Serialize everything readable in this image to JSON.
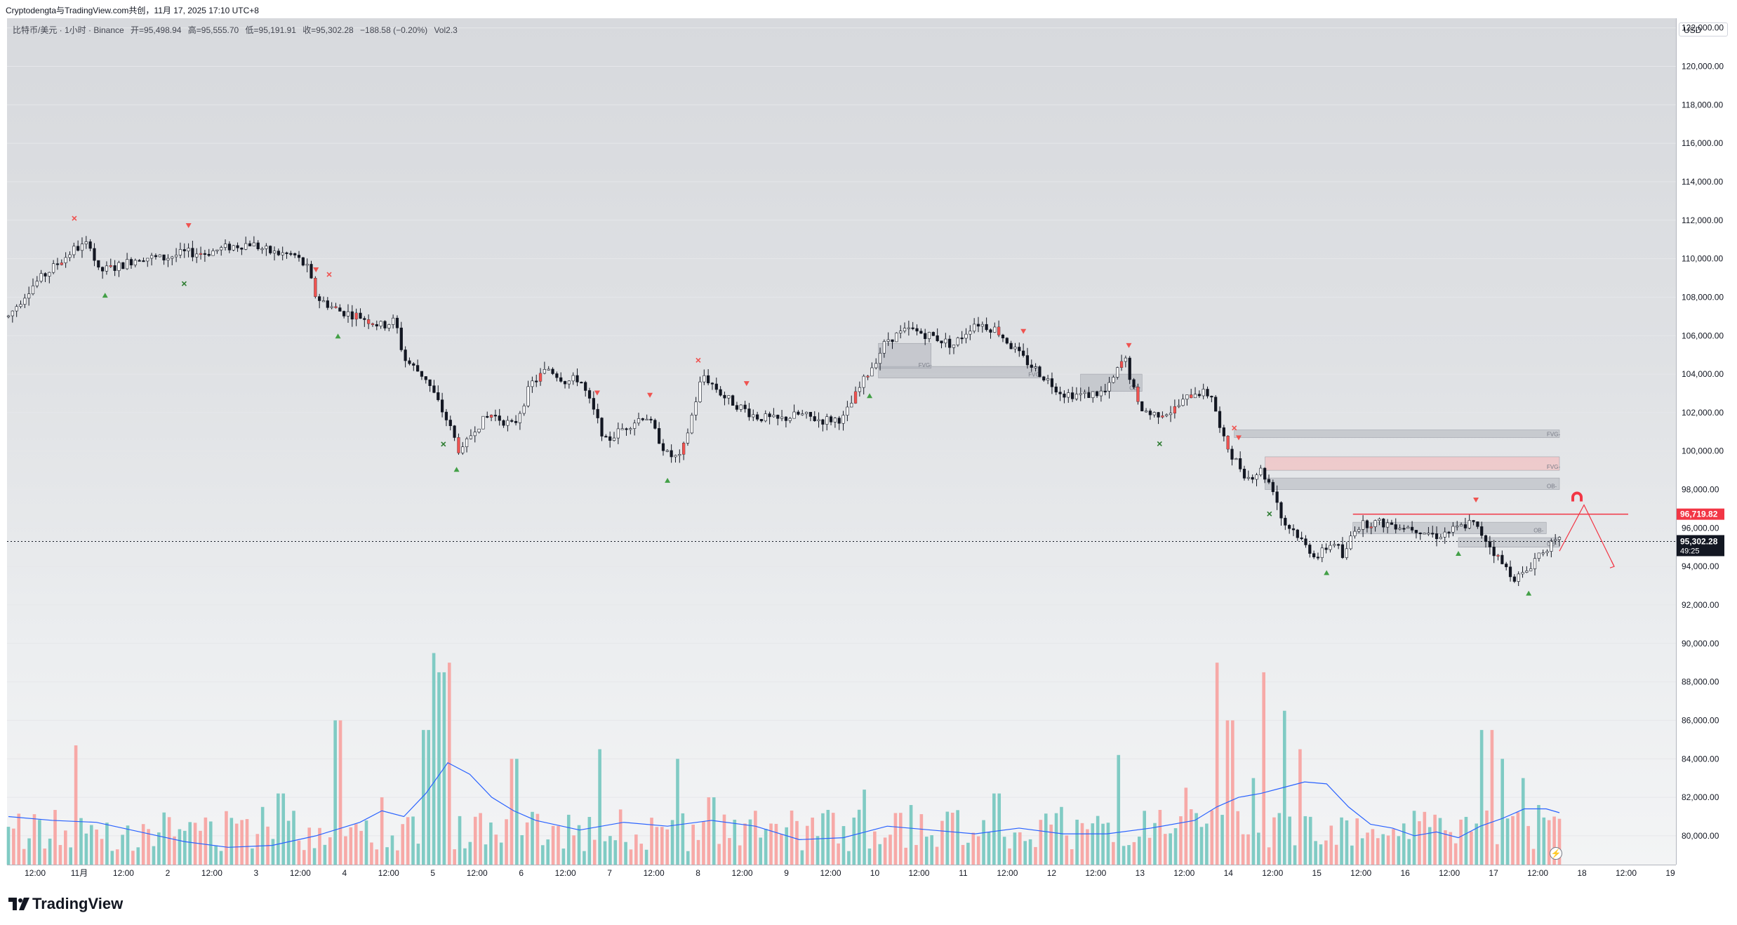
{
  "header": {
    "share_text": "Cryptodengta与TradingView.com共创，11月 17, 2025 17:10 UTC+8"
  },
  "legend": {
    "symbol": "比特币/美元 · 1小时 · Binance",
    "open": "开=95,498.94",
    "high": "高=95,555.70",
    "low": "低=95,191.91",
    "close": "收=95,302.28",
    "change": "−188.58 (−0.20%)",
    "volume": "Vol2.3"
  },
  "currency_button": "USD",
  "brand": "TradingView",
  "colors": {
    "up": "#26a69a",
    "down": "#ef5350",
    "ma": "#2962ff",
    "level": "#f23645",
    "current": "#131722"
  },
  "chart_data": {
    "type": "candlestick",
    "symbol": "BTC/USD",
    "interval": "1h",
    "exchange": "Binance",
    "y_ticks": [
      "80,000.00",
      "82,000.00",
      "84,000.00",
      "86,000.00",
      "88,000.00",
      "90,000.00",
      "92,000.00",
      "94,000.00",
      "96,000.00",
      "98,000.00",
      "100,000.00",
      "102,000.00",
      "104,000.00",
      "106,000.00",
      "108,000.00",
      "110,000.00",
      "112,000.00",
      "114,000.00",
      "116,000.00",
      "118,000.00",
      "120,000.00",
      "122,000.00"
    ],
    "ylim": [
      78500,
      122500
    ],
    "x_ticks": [
      "12:00",
      "11月",
      "12:00",
      "2",
      "12:00",
      "3",
      "12:00",
      "4",
      "12:00",
      "5",
      "12:00",
      "6",
      "12:00",
      "7",
      "12:00",
      "8",
      "12:00",
      "9",
      "12:00",
      "10",
      "12:00",
      "11",
      "12:00",
      "12",
      "12:00",
      "13",
      "12:00",
      "14",
      "12:00",
      "15",
      "12:00",
      "16",
      "12:00",
      "17",
      "12:00",
      "18",
      "12:00",
      "19"
    ],
    "current_price": {
      "label": "95,302.28",
      "countdown": "49:25",
      "value": 95302.28
    },
    "marked_level": {
      "label": "96,719.82",
      "value": 96719.82
    },
    "price_path": [
      [
        0,
        107000
      ],
      [
        0.5,
        108500
      ],
      [
        1.0,
        109500
      ],
      [
        1.5,
        110500
      ],
      [
        1.9,
        110800
      ],
      [
        2.0,
        109300
      ],
      [
        2.5,
        109600
      ],
      [
        3.0,
        110100
      ],
      [
        3.5,
        110000
      ],
      [
        4.0,
        110300
      ],
      [
        4.5,
        110300
      ],
      [
        5.0,
        110600
      ],
      [
        5.5,
        110800
      ],
      [
        6.0,
        110300
      ],
      [
        6.5,
        110200
      ],
      [
        6.8,
        109500
      ],
      [
        7.0,
        108000
      ],
      [
        7.5,
        107300
      ],
      [
        8.0,
        107000
      ],
      [
        8.5,
        106500
      ],
      [
        8.8,
        106800
      ],
      [
        9.0,
        104800
      ],
      [
        9.5,
        103800
      ],
      [
        10.0,
        101500
      ],
      [
        10.3,
        99800
      ],
      [
        10.6,
        101200
      ],
      [
        11.0,
        101900
      ],
      [
        11.5,
        101300
      ],
      [
        11.9,
        103500
      ],
      [
        12.3,
        104300
      ],
      [
        12.7,
        103600
      ],
      [
        13.0,
        103800
      ],
      [
        13.6,
        100500
      ],
      [
        14.0,
        101200
      ],
      [
        14.5,
        101900
      ],
      [
        15.0,
        99800
      ],
      [
        15.3,
        99600
      ],
      [
        15.8,
        104000
      ],
      [
        16.3,
        102800
      ],
      [
        17.0,
        101800
      ],
      [
        17.5,
        101600
      ],
      [
        18.0,
        101900
      ],
      [
        18.5,
        101600
      ],
      [
        19.0,
        101700
      ],
      [
        19.5,
        103800
      ],
      [
        20.0,
        105800
      ],
      [
        20.5,
        106300
      ],
      [
        21.0,
        106000
      ],
      [
        21.5,
        105500
      ],
      [
        22.0,
        106700
      ],
      [
        22.5,
        106300
      ],
      [
        23.0,
        105000
      ],
      [
        23.5,
        104000
      ],
      [
        24.0,
        103000
      ],
      [
        24.5,
        102900
      ],
      [
        25.0,
        103100
      ],
      [
        25.4,
        104900
      ],
      [
        25.7,
        102400
      ],
      [
        26.0,
        101900
      ],
      [
        26.5,
        102100
      ],
      [
        27.0,
        103100
      ],
      [
        27.4,
        102900
      ],
      [
        27.6,
        100800
      ],
      [
        27.9,
        99600
      ],
      [
        28.2,
        98600
      ],
      [
        28.5,
        99000
      ],
      [
        28.8,
        98000
      ],
      [
        29.0,
        96300
      ],
      [
        29.3,
        95800
      ],
      [
        29.5,
        95100
      ],
      [
        29.8,
        94500
      ],
      [
        30.0,
        95000
      ],
      [
        30.2,
        95300
      ],
      [
        30.4,
        94300
      ],
      [
        30.6,
        96000
      ],
      [
        31.0,
        96300
      ],
      [
        31.5,
        96200
      ],
      [
        32.0,
        96000
      ],
      [
        32.5,
        95600
      ],
      [
        33.0,
        96000
      ],
      [
        33.3,
        96300
      ],
      [
        33.6,
        95500
      ],
      [
        34.0,
        94100
      ],
      [
        34.3,
        93400
      ],
      [
        34.5,
        93600
      ],
      [
        34.8,
        94600
      ],
      [
        35.0,
        95000
      ],
      [
        35.3,
        95300
      ]
    ],
    "volume_ma_path": [
      [
        0,
        81000
      ],
      [
        1.0,
        80800
      ],
      [
        2.0,
        80700
      ],
      [
        3.0,
        80200
      ],
      [
        4.0,
        79700
      ],
      [
        5.0,
        79400
      ],
      [
        6.0,
        79500
      ],
      [
        7.0,
        80000
      ],
      [
        8.0,
        80700
      ],
      [
        8.5,
        81300
      ],
      [
        9.0,
        81000
      ],
      [
        9.5,
        82200
      ],
      [
        10.0,
        83800
      ],
      [
        10.5,
        83200
      ],
      [
        11.0,
        82000
      ],
      [
        11.5,
        81300
      ],
      [
        12.0,
        80800
      ],
      [
        13.0,
        80300
      ],
      [
        14.0,
        80700
      ],
      [
        15.0,
        80500
      ],
      [
        16.0,
        80800
      ],
      [
        17.0,
        80500
      ],
      [
        18.0,
        79800
      ],
      [
        19.0,
        79900
      ],
      [
        20.0,
        80500
      ],
      [
        21.0,
        80300
      ],
      [
        22.0,
        80100
      ],
      [
        23.0,
        80400
      ],
      [
        24.0,
        80100
      ],
      [
        25.0,
        80100
      ],
      [
        26.0,
        80400
      ],
      [
        27.0,
        80800
      ],
      [
        27.5,
        81500
      ],
      [
        28.0,
        82000
      ],
      [
        28.5,
        82200
      ],
      [
        29.0,
        82500
      ],
      [
        29.5,
        82800
      ],
      [
        30.0,
        82700
      ],
      [
        30.5,
        81500
      ],
      [
        31.0,
        80600
      ],
      [
        31.5,
        80400
      ],
      [
        32.0,
        80000
      ],
      [
        32.5,
        80200
      ],
      [
        33.0,
        79900
      ],
      [
        33.5,
        80500
      ],
      [
        34.0,
        80900
      ],
      [
        34.5,
        81400
      ],
      [
        35.0,
        81400
      ],
      [
        35.3,
        81200
      ]
    ],
    "volume_spikes": [
      [
        1.5,
        84700
      ],
      [
        5.8,
        81500
      ],
      [
        6.2,
        82200
      ],
      [
        7.5,
        86000
      ],
      [
        8.5,
        82000
      ],
      [
        9.5,
        85500
      ],
      [
        9.7,
        89500
      ],
      [
        9.85,
        88500
      ],
      [
        10.0,
        89000
      ],
      [
        11.5,
        84000
      ],
      [
        13.5,
        84500
      ],
      [
        15.2,
        84000
      ],
      [
        16.0,
        82000
      ],
      [
        19.5,
        82400
      ],
      [
        20.5,
        81600
      ],
      [
        21.5,
        81200
      ],
      [
        22.5,
        82200
      ],
      [
        24.0,
        81500
      ],
      [
        25.3,
        84200
      ],
      [
        26.8,
        82500
      ],
      [
        27.5,
        89000
      ],
      [
        27.8,
        86000
      ],
      [
        28.3,
        83000
      ],
      [
        28.6,
        88500
      ],
      [
        29.0,
        86500
      ],
      [
        29.4,
        84500
      ],
      [
        30.5,
        80800
      ],
      [
        32.0,
        81300
      ],
      [
        33.5,
        85500
      ],
      [
        33.8,
        85500
      ],
      [
        34.0,
        84000
      ],
      [
        34.5,
        83000
      ],
      [
        34.8,
        81600
      ],
      [
        35.2,
        81000
      ]
    ],
    "zone_labels": [
      "FVG-",
      "FVG-",
      "FVG-",
      "FVG-",
      "OB-",
      "OB-",
      "OB-",
      "OB+"
    ]
  }
}
